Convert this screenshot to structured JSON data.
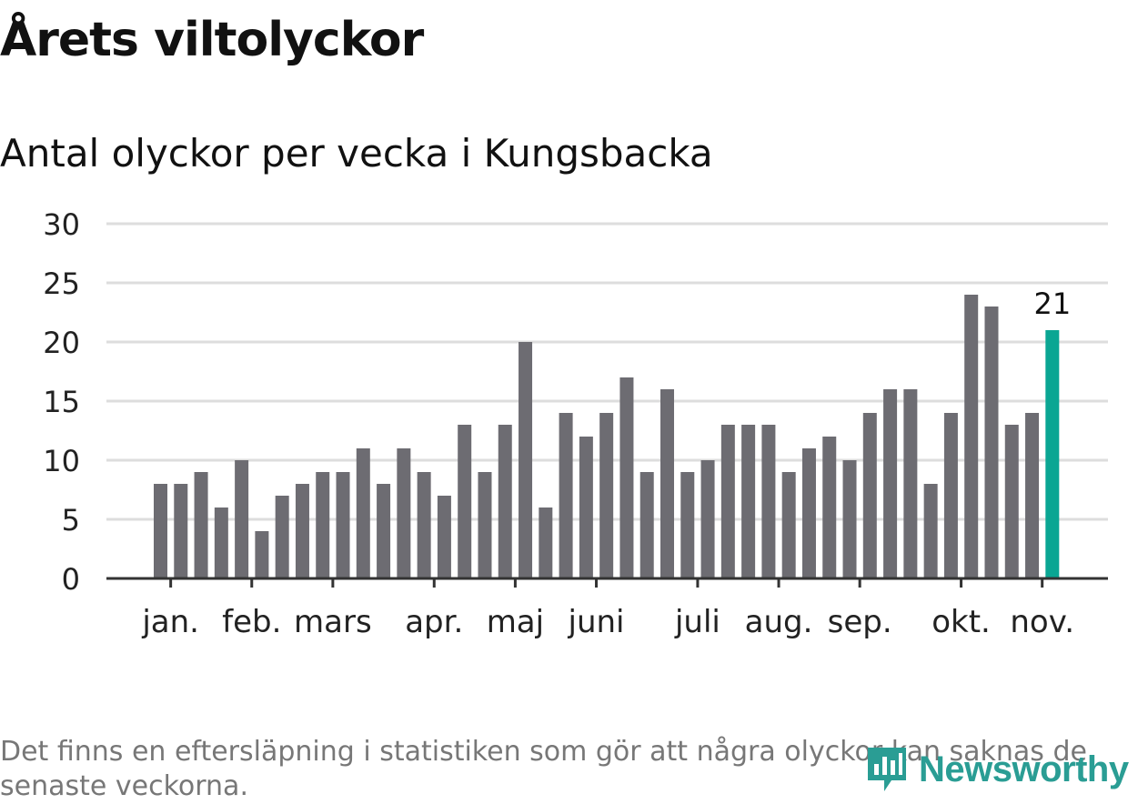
{
  "title": "Årets viltolyckor",
  "subtitle": "Antal olyckor per vecka i Kungsbacka",
  "footnote": "Det finns en eftersläpning i statistiken som gör att några olyckor kan saknas de senaste veckorna.",
  "logo": {
    "text": "Newsworthy",
    "icon": "newsworthy-logo-icon"
  },
  "colors": {
    "bar": "#6d6c72",
    "highlight": "#0aa693",
    "grid": "#dddddd",
    "axis": "#333333",
    "logo": "#2a9d94"
  },
  "chart_data": {
    "type": "bar",
    "title": "Antal olyckor per vecka i Kungsbacka",
    "xlabel": "",
    "ylabel": "",
    "ylim": [
      0,
      30
    ],
    "yticks": [
      0,
      5,
      10,
      15,
      20,
      25,
      30
    ],
    "grid": true,
    "weeks": [
      1,
      2,
      3,
      4,
      5,
      6,
      7,
      8,
      9,
      10,
      11,
      12,
      13,
      14,
      15,
      16,
      17,
      18,
      19,
      20,
      21,
      22,
      23,
      24,
      25,
      26,
      27,
      28,
      29,
      30,
      31,
      32,
      33,
      34,
      35,
      36,
      37,
      38,
      39,
      40,
      41,
      42,
      43,
      44,
      45
    ],
    "values": [
      8,
      8,
      9,
      6,
      10,
      4,
      7,
      8,
      9,
      9,
      11,
      8,
      11,
      9,
      7,
      13,
      9,
      13,
      20,
      6,
      14,
      12,
      14,
      17,
      9,
      16,
      9,
      10,
      13,
      13,
      13,
      9,
      11,
      12,
      10,
      14,
      16,
      16,
      8,
      14,
      24,
      23,
      13,
      14,
      21
    ],
    "highlight_index": 44,
    "highlight_label": "21",
    "month_labels": [
      {
        "label": "jan.",
        "week": 1.5
      },
      {
        "label": "feb.",
        "week": 5.5
      },
      {
        "label": "mars",
        "week": 9.5
      },
      {
        "label": "apr.",
        "week": 14.5
      },
      {
        "label": "maj",
        "week": 18.5
      },
      {
        "label": "juni",
        "week": 22.5
      },
      {
        "label": "juli",
        "week": 27.5
      },
      {
        "label": "aug.",
        "week": 31.5
      },
      {
        "label": "sep.",
        "week": 35.5
      },
      {
        "label": "okt.",
        "week": 40.5
      },
      {
        "label": "nov.",
        "week": 44.5
      }
    ]
  }
}
